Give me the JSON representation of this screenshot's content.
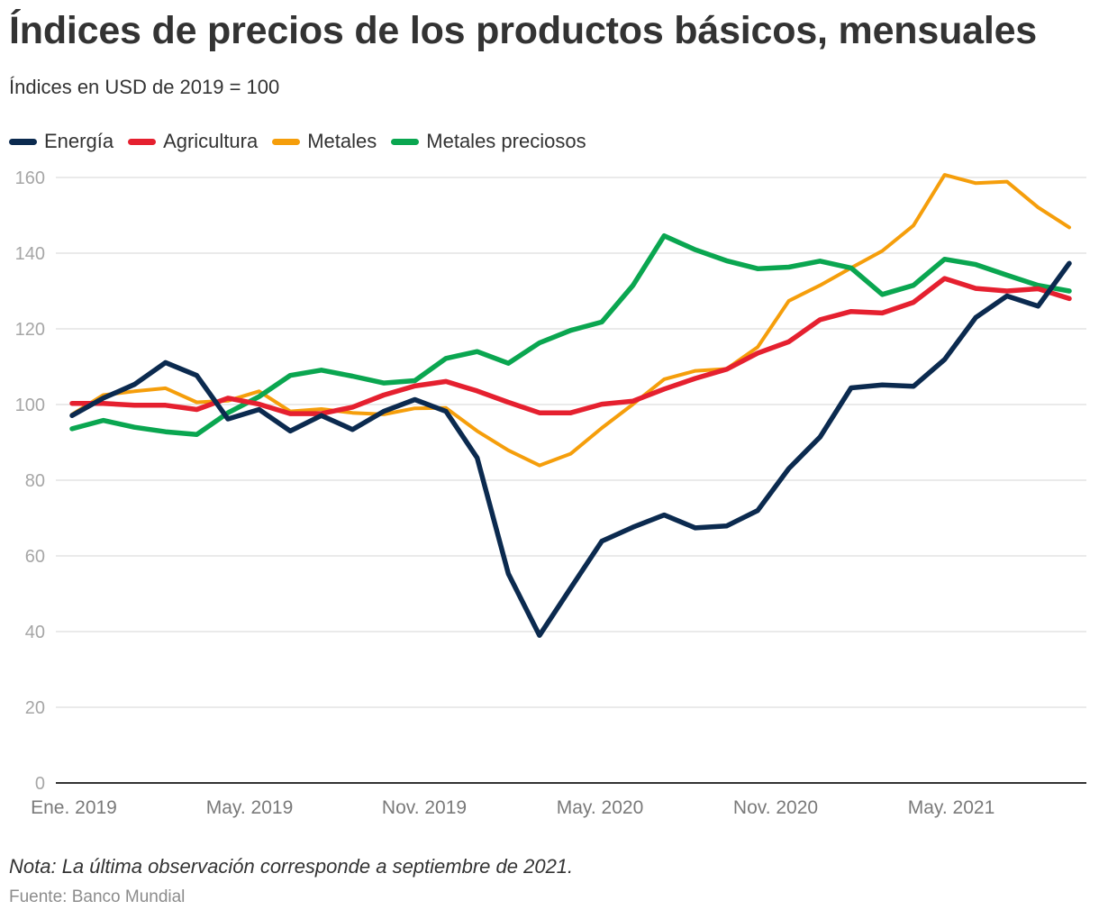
{
  "title": "Índices de precios de los productos básicos, mensuales",
  "subtitle": "Índices en USD de 2019 = 100",
  "note": "Nota: La última observación corresponde a septiembre de 2021.",
  "source": "Fuente: Banco Mundial",
  "legend": [
    {
      "label": "Energía",
      "color": "#0b2a4f"
    },
    {
      "label": "Agricultura",
      "color": "#e5202f"
    },
    {
      "label": "Metales",
      "color": "#f59e0b"
    },
    {
      "label": "Metales preciosos",
      "color": "#0aa650"
    }
  ],
  "chart_data": {
    "type": "line",
    "title": "Índices de precios de los productos básicos, mensuales",
    "subtitle": "Índices en USD de 2019 = 100",
    "xlabel": "",
    "ylabel": "",
    "ylim": [
      0,
      160
    ],
    "yticks": [
      0,
      20,
      40,
      60,
      80,
      100,
      120,
      140,
      160
    ],
    "grid": true,
    "legend_position": "top-left",
    "x": [
      "2019-01",
      "2019-02",
      "2019-03",
      "2019-04",
      "2019-05",
      "2019-06",
      "2019-07",
      "2019-08",
      "2019-09",
      "2019-10",
      "2019-11",
      "2019-12",
      "2020-01",
      "2020-02",
      "2020-03",
      "2020-04",
      "2020-05",
      "2020-06",
      "2020-07",
      "2020-08",
      "2020-09",
      "2020-10",
      "2020-11",
      "2020-12",
      "2021-01",
      "2021-02",
      "2021-03",
      "2021-04",
      "2021-05",
      "2021-06",
      "2021-07",
      "2021-08",
      "2021-09"
    ],
    "xtick_labels": [
      "Ene. 2019",
      "May. 2019",
      "Nov. 2019",
      "May. 2020",
      "Nov. 2020",
      "May. 2021"
    ],
    "series": [
      {
        "name": "Energía",
        "color": "#0b2a4f",
        "values": [
          97.1,
          101.7,
          105.3,
          111.1,
          107.7,
          96.2,
          98.7,
          93.0,
          97.1,
          93.4,
          98.2,
          101.3,
          98.2,
          85.9,
          55.3,
          39.0,
          51.5,
          63.9,
          67.6,
          70.8,
          67.4,
          67.9,
          72.0,
          83.1,
          91.4,
          104.4,
          105.2,
          104.8,
          111.9,
          123.0,
          128.7,
          126.0,
          137.3
        ]
      },
      {
        "name": "Agricultura",
        "color": "#e5202f",
        "values": [
          100.3,
          100.3,
          99.8,
          99.8,
          98.7,
          101.7,
          100.1,
          97.6,
          97.6,
          99.3,
          102.5,
          104.9,
          106.1,
          103.6,
          100.6,
          97.8,
          97.8,
          100.1,
          100.9,
          104.1,
          106.9,
          109.3,
          113.6,
          116.6,
          122.4,
          124.6,
          124.2,
          127.0,
          133.3,
          130.7,
          130.0,
          130.6,
          128.0
        ]
      },
      {
        "name": "Metales",
        "color": "#f59e0b",
        "values": [
          97.4,
          102.5,
          103.5,
          104.3,
          100.6,
          101.0,
          103.5,
          98.2,
          98.8,
          97.8,
          97.4,
          99.0,
          99.1,
          93.0,
          87.9,
          83.9,
          87.0,
          93.8,
          100.1,
          106.7,
          108.9,
          109.4,
          115.2,
          127.4,
          131.5,
          136.1,
          140.6,
          147.3,
          160.7,
          158.5,
          158.9,
          152.1,
          146.8
        ]
      },
      {
        "name": "Metales preciosos",
        "color": "#0aa650",
        "values": [
          93.6,
          95.8,
          94.0,
          92.8,
          92.1,
          97.8,
          102.1,
          107.7,
          109.1,
          107.5,
          105.7,
          106.3,
          112.2,
          114.0,
          110.9,
          116.3,
          119.6,
          121.8,
          131.5,
          144.6,
          140.9,
          138.0,
          135.9,
          136.3,
          137.9,
          136.1,
          129.1,
          131.5,
          138.4,
          137.0,
          134.2,
          131.5,
          130.0
        ]
      }
    ]
  }
}
